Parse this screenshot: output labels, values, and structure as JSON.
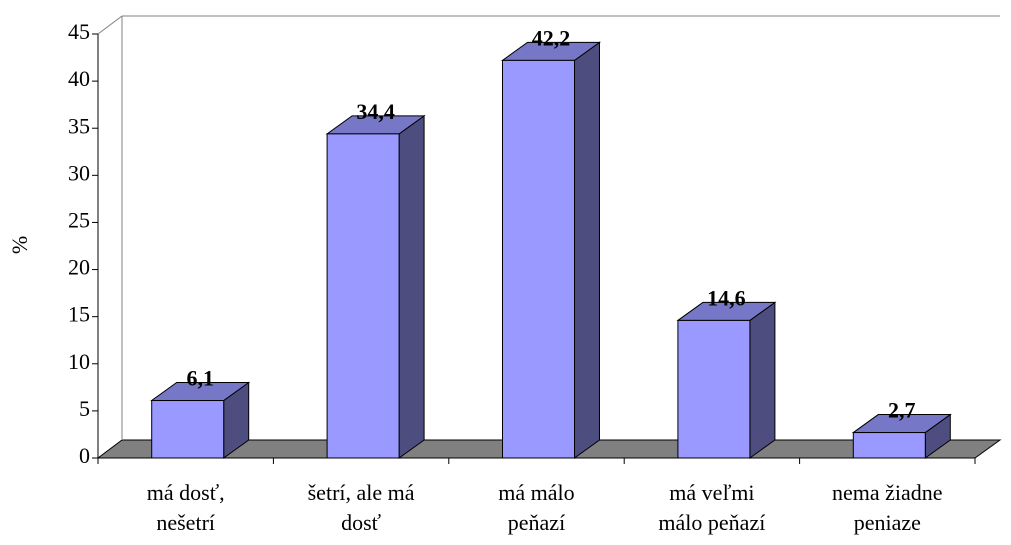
{
  "chart_data": {
    "type": "bar3d",
    "y_label": "%",
    "categories": [
      "má dosť,\nnešetrí",
      "šetrí, ale má\ndosť",
      "má málo\npeňazí",
      "má veľmi\nmálo peňazí",
      "nema žiadne\npeniaze"
    ],
    "values": [
      6.1,
      34.4,
      42.2,
      14.6,
      2.7
    ],
    "value_labels": [
      "6,1",
      "34,4",
      "42,2",
      "14,6",
      "2,7"
    ],
    "color": "#9999ff",
    "ylim": [
      0,
      45
    ],
    "yticks": [
      0,
      5,
      10,
      15,
      20,
      25,
      30,
      35,
      40,
      45
    ]
  }
}
